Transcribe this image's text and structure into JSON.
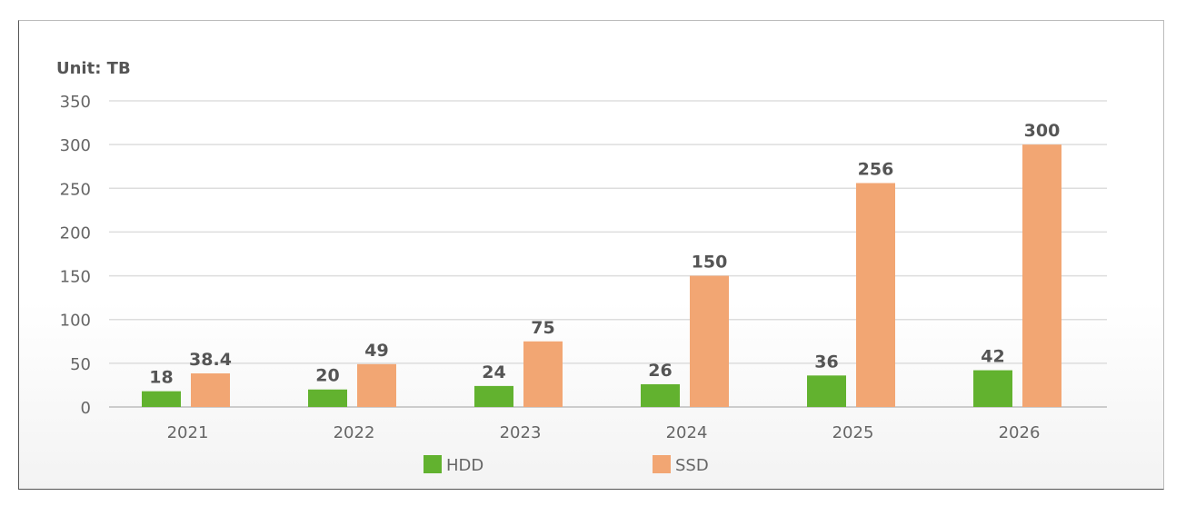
{
  "chart_data": {
    "type": "bar",
    "title": "",
    "unit_label": "Unit: TB",
    "xlabel": "",
    "ylabel": "",
    "ylim": [
      0,
      350
    ],
    "yticks": [
      0,
      50,
      100,
      150,
      200,
      250,
      300,
      350
    ],
    "grid": true,
    "legend_position": "bottom-center",
    "categories": [
      "2021",
      "2022",
      "2023",
      "2024",
      "2025",
      "2026"
    ],
    "series": [
      {
        "name": "HDD",
        "color": "#62b22f",
        "values": [
          18,
          20,
          24,
          26,
          36,
          42
        ],
        "labels": [
          "18",
          "20",
          "24",
          "26",
          "36",
          "42"
        ]
      },
      {
        "name": "SSD",
        "color": "#f2a673",
        "values": [
          38.4,
          49,
          75,
          150,
          256,
          300
        ],
        "labels": [
          "38.4",
          "49",
          "75",
          "150",
          "256",
          "300"
        ]
      }
    ]
  }
}
